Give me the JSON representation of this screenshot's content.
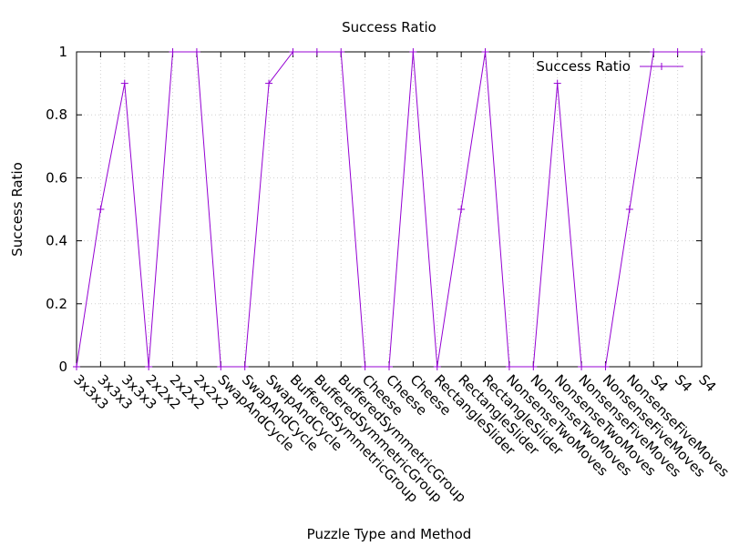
{
  "chart_data": {
    "type": "line",
    "title": "Success Ratio",
    "xlabel": "Puzzle Type and Method",
    "ylabel": "Success Ratio",
    "ylim": [
      0,
      1
    ],
    "yticks": [
      "0",
      "0.2",
      "0.4",
      "0.6",
      "0.8",
      "1"
    ],
    "grid": true,
    "legend_position": "top-right",
    "categories": [
      "3x3x3",
      "3x3x3",
      "3x3x3",
      "2x2x2",
      "2x2x2",
      "2x2x2",
      "SwapAndCycle",
      "SwapAndCycle",
      "SwapAndCycle",
      "BufferedSymmetricGroup",
      "BufferedSymmetricGroup",
      "BufferedSymmetricGroup",
      "Cheese",
      "Cheese",
      "Cheese",
      "RectangleSlider",
      "RectangleSlider",
      "RectangleSlider",
      "NonsenseTwoMoves",
      "NonsenseTwoMoves",
      "NonsenseTwoMoves",
      "NonsenseFiveMoves",
      "NonsenseFiveMoves",
      "NonsenseFiveMoves",
      "S4",
      "S4",
      "S4"
    ],
    "series": [
      {
        "name": "Success Ratio",
        "color": "#9400d3",
        "values": [
          0,
          0.5,
          0.9,
          0,
          1,
          1,
          0,
          0,
          0.9,
          1,
          1,
          1,
          0,
          0,
          1,
          0,
          0.5,
          1,
          0,
          0,
          0.9,
          0,
          0,
          0.5,
          1,
          1,
          1
        ]
      }
    ]
  }
}
